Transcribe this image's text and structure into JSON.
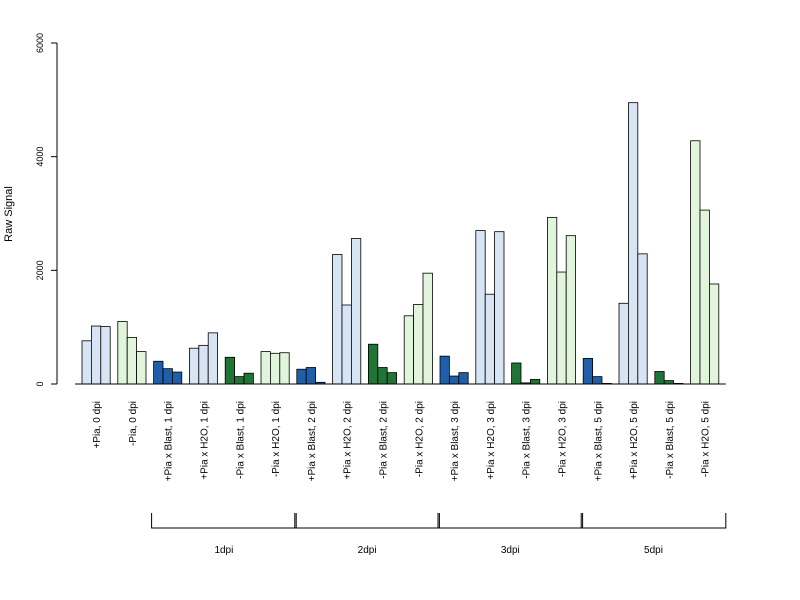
{
  "chart_data": {
    "type": "bar",
    "title": "",
    "xlabel": "",
    "ylabel": "Raw Signal",
    "ylim": [
      0,
      6000
    ],
    "yticks": [
      0,
      2000,
      4000,
      6000
    ],
    "ytick_labels": [
      "0",
      "2000",
      "4000",
      "6000"
    ],
    "grid": false,
    "legend": "none",
    "categories": [
      "+Pia, 0 dpi",
      "-Pia, 0 dpi",
      "+Pia x Blast, 1 dpi",
      "+Pia x H2O, 1 dpi",
      "-Pia x Blast, 1 dpi",
      "-Pia x H2O, 1 dpi",
      "+Pia x Blast, 2 dpi",
      "+Pia x H2O, 2 dpi",
      "-Pia x Blast, 2 dpi",
      "-Pia x H2O, 2 dpi",
      "+Pia x Blast, 3 dpi",
      "+Pia x H2O, 3 dpi",
      "-Pia x Blast, 3 dpi",
      "-Pia x H2O, 3 dpi",
      "+Pia x Blast, 5 dpi",
      "+Pia x H2O, 5 dpi",
      "-Pia x Blast, 5 dpi",
      "-Pia x H2O, 5 dpi"
    ],
    "replicate_values": [
      [
        760,
        1020,
        1010
      ],
      [
        1100,
        820,
        570
      ],
      [
        400,
        270,
        210
      ],
      [
        630,
        680,
        900
      ],
      [
        470,
        130,
        190
      ],
      [
        570,
        540,
        550
      ],
      [
        260,
        290,
        30
      ],
      [
        2280,
        1390,
        2560
      ],
      [
        700,
        290,
        200
      ],
      [
        1200,
        1400,
        1950
      ],
      [
        490,
        140,
        200
      ],
      [
        2700,
        1580,
        2680
      ],
      [
        370,
        20,
        80
      ],
      [
        2930,
        1970,
        2610
      ],
      [
        450,
        130,
        10
      ],
      [
        1420,
        4950,
        2290
      ],
      [
        220,
        60,
        10
      ],
      [
        4280,
        3060,
        1760
      ]
    ],
    "bar_colors": [
      "#d6e4f3",
      "#e1f5dc",
      "#1f5ea8",
      "#d6e4f3",
      "#1f7436",
      "#e1f5dc",
      "#1f5ea8",
      "#d6e4f3",
      "#1f7436",
      "#e1f5dc",
      "#1f5ea8",
      "#d6e4f3",
      "#1f7436",
      "#e1f5dc",
      "#1f5ea8",
      "#d6e4f3",
      "#1f7436",
      "#e1f5dc"
    ],
    "groups": [
      {
        "label": "1dpi",
        "from": 2,
        "to": 5
      },
      {
        "label": "2dpi",
        "from": 6,
        "to": 9
      },
      {
        "label": "3dpi",
        "from": 10,
        "to": 13
      },
      {
        "label": "5dpi",
        "from": 14,
        "to": 17
      }
    ]
  }
}
